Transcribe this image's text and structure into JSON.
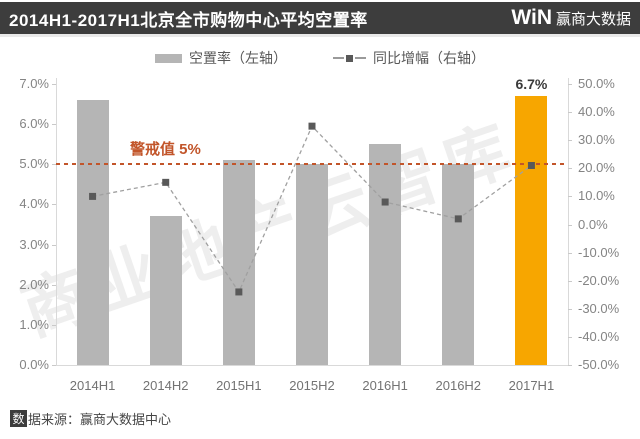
{
  "header": {
    "title": "2014H1-2017H1北京全市购物中心平均空置率",
    "logo_win": "WiN",
    "logo_cn": "赢商大数据"
  },
  "legend": [
    {
      "label": "空置率（左轴）"
    },
    {
      "label": "同比增幅（右轴）"
    }
  ],
  "chart_data": {
    "type": "bar+line combo",
    "categories": [
      "2014H1",
      "2014H2",
      "2015H1",
      "2015H2",
      "2016H1",
      "2016H2",
      "2017H1"
    ],
    "series": [
      {
        "name": "空置率（左轴）",
        "type": "bar",
        "axis": "left",
        "unit": "%",
        "values": [
          6.6,
          3.7,
          5.1,
          5.0,
          5.5,
          5.0,
          6.7
        ]
      },
      {
        "name": "同比增幅（右轴）",
        "type": "line",
        "axis": "right",
        "unit": "%",
        "values": [
          10,
          15,
          -24,
          35,
          8,
          2,
          21
        ]
      }
    ],
    "left_axis": {
      "min": 0,
      "max": 7,
      "labels": [
        "7.0%",
        "6.0%",
        "5.0%",
        "4.0%",
        "3.0%",
        "2.0%",
        "1.0%",
        "0.0%"
      ]
    },
    "right_axis": {
      "min": -50,
      "max": 50,
      "labels": [
        "50.0%",
        "40.0%",
        "30.0%",
        "20.0%",
        "10.0%",
        "0.0%",
        "-10.0%",
        "-20.0%",
        "-30.0%",
        "-40.0%",
        "-50.0%"
      ]
    },
    "warning_line": {
      "label": "警戒值 5%",
      "value": 5
    },
    "highlight": {
      "index": 6,
      "data_label": "6.7%"
    },
    "grid": false,
    "legend_position": "top-center",
    "colors": {
      "bar": "#b5b5b5",
      "bar_highlight": "#F7A600",
      "line": "#a0a0a0",
      "marker": "#595959",
      "warning": "#C2552A",
      "header_bg": "#3d3d3d"
    }
  },
  "watermark": "商业地产云智库",
  "footer": {
    "prefix_char": "数",
    "rest": "据来源：赢商大数据中心"
  }
}
